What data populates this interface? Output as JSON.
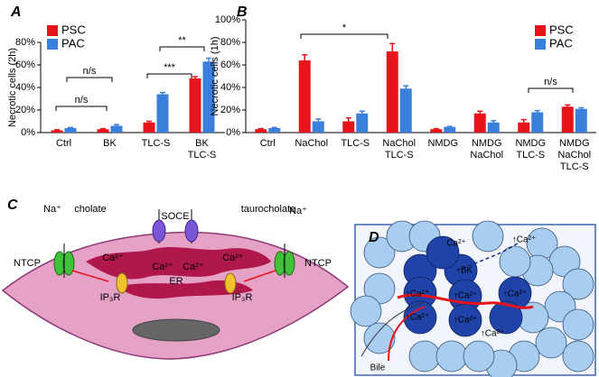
{
  "chart_data": [
    {
      "type": "bar",
      "panel": "A",
      "y_label": "Necrotic cells (2h)",
      "categories": [
        [
          "Ctrl"
        ],
        [
          "BK"
        ],
        [
          "TLC-S"
        ],
        [
          "BK",
          "TLC-S"
        ]
      ],
      "series": [
        {
          "name": "PSC",
          "color": "#e8141b",
          "values": [
            2,
            3,
            9,
            48
          ],
          "errors": [
            0.5,
            0.5,
            1,
            1.5
          ]
        },
        {
          "name": "PAC",
          "color": "#3a7fd9",
          "values": [
            4,
            6,
            34,
            63
          ],
          "errors": [
            0.5,
            1,
            1.5,
            3
          ]
        }
      ],
      "category_colors": [
        "#000000",
        "#000000",
        "#000000",
        "#000000"
      ],
      "ylim": [
        0,
        80
      ],
      "yticks": [
        {
          "value": 0,
          "label": "0%"
        },
        {
          "value": 20,
          "label": "20%"
        },
        {
          "value": 40,
          "label": "40%"
        },
        {
          "value": 60,
          "label": "60%"
        },
        {
          "value": 80,
          "label": "80%"
        }
      ],
      "legend": "upper left",
      "annotations": [
        "n/s",
        "n/s",
        "***",
        "**"
      ]
    },
    {
      "type": "bar",
      "panel": "B",
      "y_label": "Necrotic cells (1h)",
      "categories": [
        [
          "Ctrl"
        ],
        [
          "NaChol"
        ],
        [
          "TLC-S"
        ],
        [
          "NaChol",
          "TLC-S"
        ],
        [
          "NMDG"
        ],
        [
          "NMDG",
          "NaChol"
        ],
        [
          "NMDG",
          "TLC-S"
        ],
        [
          "NMDG",
          "NaChol",
          "TLC-S"
        ]
      ],
      "series": [
        {
          "name": "PSC",
          "color": "#e8141b",
          "values": [
            3,
            64,
            10,
            72,
            3,
            17,
            9,
            23
          ],
          "errors": [
            0.5,
            5,
            3,
            7,
            0.5,
            2,
            2.5,
            1.5
          ]
        },
        {
          "name": "PAC",
          "color": "#3a7fd9",
          "values": [
            4,
            10,
            17,
            39,
            5,
            9,
            18,
            21
          ],
          "errors": [
            0.5,
            2,
            2,
            2.5,
            0.5,
            1.5,
            1.5,
            1
          ]
        }
      ],
      "category_colors": [
        "#000000",
        "#000000",
        "#000000",
        "#000000",
        "#e8141b",
        "#e8141b",
        "#e8141b",
        "#e8141b"
      ],
      "ylim": [
        0,
        100
      ],
      "yticks": [
        {
          "value": 0,
          "label": "0%"
        },
        {
          "value": 20,
          "label": "20%"
        },
        {
          "value": 40,
          "label": "40%"
        },
        {
          "value": 60,
          "label": "60%"
        },
        {
          "value": 80,
          "label": "80%"
        },
        {
          "value": 100,
          "label": "100%"
        }
      ],
      "legend": "upper right",
      "annotations": [
        "*",
        "n/s"
      ]
    }
  ],
  "diagram_c": {
    "panel": "C",
    "labels": [
      "Na⁺",
      "cholate",
      "NTCP",
      "SOCE",
      "Ca²⁺",
      "Ca²⁺",
      "taurocholate",
      "Na⁺",
      "NTCP",
      "Ca²⁺",
      "Ca²⁺",
      "IP₃R",
      "ER",
      "IP₃R"
    ]
  },
  "diagram_d": {
    "panel": "D",
    "labels": [
      "↑Ca²⁺",
      "Ca²⁺",
      "↑BK",
      "↑Ca²⁺",
      "↑Ca²⁺",
      "↑Ca²⁺",
      "↑Ca²⁺",
      "↑Ca²⁺",
      "↑Ca²⁺",
      "Bile"
    ]
  }
}
